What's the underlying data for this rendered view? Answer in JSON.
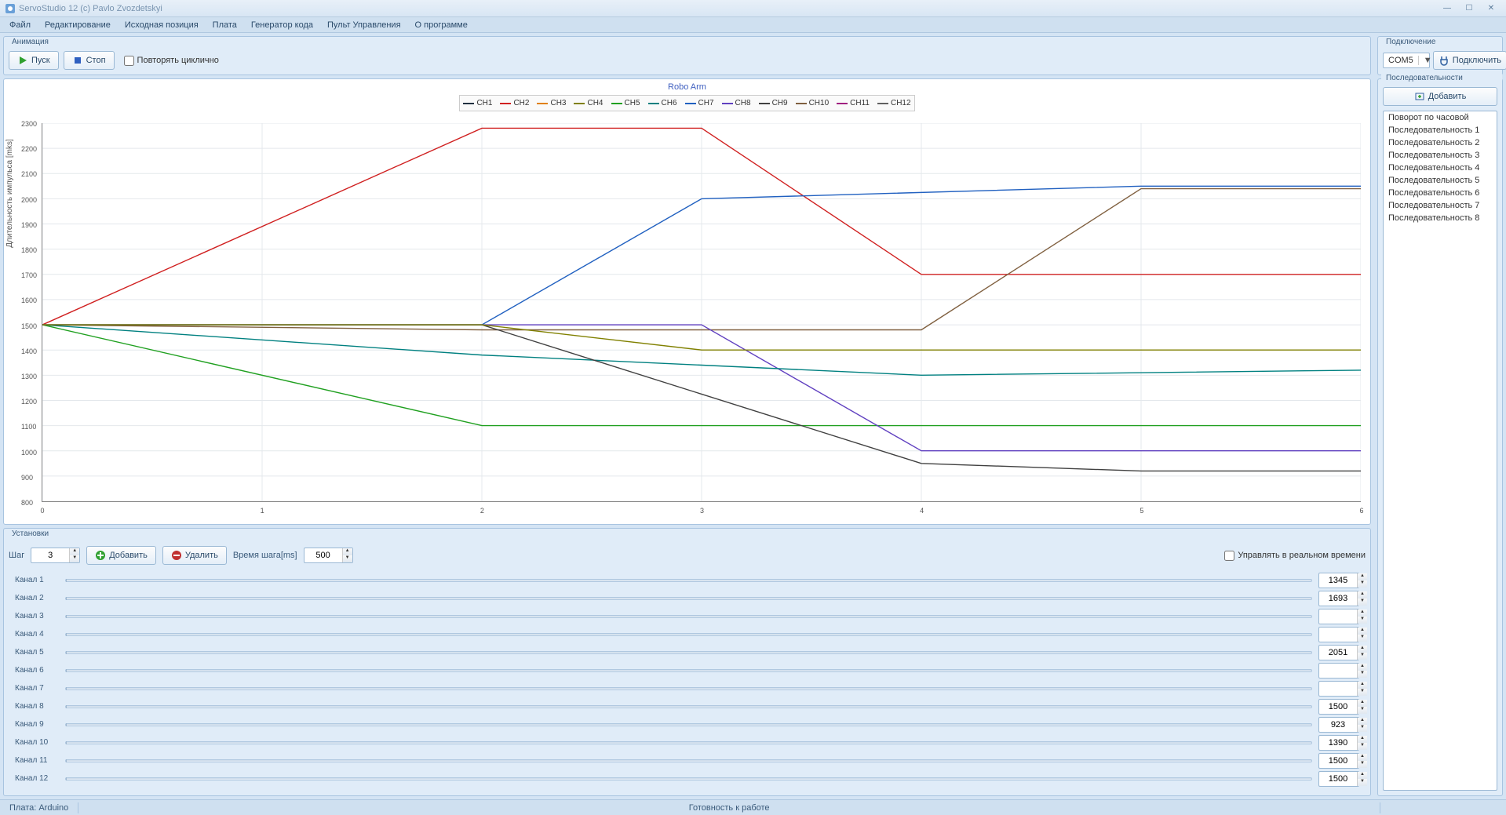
{
  "window": {
    "title": "ServoStudio 12  (c) Pavlo Zvozdetskyi",
    "min": "—",
    "max": "☐",
    "close": "✕"
  },
  "menu": [
    "Файл",
    "Редактирование",
    "Исходная позиция",
    "Плата",
    "Генератор кода",
    "Пульт Управления",
    "О программе"
  ],
  "animation": {
    "title": "Анимация",
    "play": "Пуск",
    "stop": "Стоп",
    "loop": "Повторять циклично"
  },
  "chart": {
    "title": "Robo Arm",
    "ylabel": "Длительность импульса [mks]",
    "ylim": [
      800,
      2300
    ],
    "ytick_step": 100,
    "xlim": [
      0,
      6
    ],
    "xticks": [
      0,
      1,
      2,
      3,
      4,
      5,
      6
    ],
    "channels": [
      {
        "name": "CH1",
        "color": "#203040"
      },
      {
        "name": "CH2",
        "color": "#d02020"
      },
      {
        "name": "CH3",
        "color": "#e08000"
      },
      {
        "name": "CH4",
        "color": "#808000"
      },
      {
        "name": "CH5",
        "color": "#20a020"
      },
      {
        "name": "CH6",
        "color": "#008080"
      },
      {
        "name": "CH7",
        "color": "#2060c0"
      },
      {
        "name": "CH8",
        "color": "#6040c0"
      },
      {
        "name": "CH9",
        "color": "#404040"
      },
      {
        "name": "CH10",
        "color": "#806040"
      },
      {
        "name": "CH11",
        "color": "#a02080"
      },
      {
        "name": "CH12",
        "color": "#606060"
      }
    ],
    "series": [
      {
        "color": "#d02020",
        "pts": [
          [
            0,
            1500
          ],
          [
            2,
            2280
          ],
          [
            3,
            2280
          ],
          [
            4,
            1700
          ],
          [
            6,
            1700
          ]
        ]
      },
      {
        "color": "#2060c0",
        "pts": [
          [
            0,
            1500
          ],
          [
            2,
            1500
          ],
          [
            3,
            2000
          ],
          [
            5,
            2050
          ],
          [
            6,
            2050
          ]
        ]
      },
      {
        "color": "#806040",
        "pts": [
          [
            0,
            1500
          ],
          [
            2,
            1480
          ],
          [
            4,
            1480
          ],
          [
            5,
            2040
          ],
          [
            6,
            2040
          ]
        ]
      },
      {
        "color": "#20a020",
        "pts": [
          [
            0,
            1500
          ],
          [
            2,
            1100
          ],
          [
            4,
            1100
          ],
          [
            6,
            1100
          ]
        ]
      },
      {
        "color": "#6040c0",
        "pts": [
          [
            0,
            1500
          ],
          [
            3,
            1500
          ],
          [
            4,
            1000
          ],
          [
            6,
            1000
          ]
        ]
      },
      {
        "color": "#008080",
        "pts": [
          [
            0,
            1500
          ],
          [
            2,
            1380
          ],
          [
            4,
            1300
          ],
          [
            6,
            1320
          ]
        ]
      },
      {
        "color": "#404040",
        "pts": [
          [
            0,
            1500
          ],
          [
            2,
            1500
          ],
          [
            4,
            950
          ],
          [
            5,
            920
          ],
          [
            6,
            920
          ]
        ]
      },
      {
        "color": "#808000",
        "pts": [
          [
            0,
            1500
          ],
          [
            2,
            1500
          ],
          [
            3,
            1400
          ],
          [
            6,
            1400
          ]
        ]
      }
    ]
  },
  "settings": {
    "title": "Установки",
    "step_label": "Шаг",
    "step_value": "3",
    "add_label": "Добавить",
    "delete_label": "Удалить",
    "steptime_label": "Время шага[ms]",
    "steptime_value": "500",
    "realtime_label": "Управлять в реальном времени",
    "channels": [
      {
        "label": "Канал 1",
        "value": "1345"
      },
      {
        "label": "Канал 2",
        "value": "1693"
      },
      {
        "label": "Канал 3",
        "value": ""
      },
      {
        "label": "Канал 4",
        "value": ""
      },
      {
        "label": "Канал 5",
        "value": "2051"
      },
      {
        "label": "Канал 6",
        "value": ""
      },
      {
        "label": "Канал 7",
        "value": ""
      },
      {
        "label": "Канал 8",
        "value": "1500"
      },
      {
        "label": "Канал 9",
        "value": "923"
      },
      {
        "label": "Канал 10",
        "value": "1390"
      },
      {
        "label": "Канал 11",
        "value": "1500"
      },
      {
        "label": "Канал 12",
        "value": "1500"
      }
    ]
  },
  "connection": {
    "title": "Подключение",
    "port": "COM5",
    "connect": "Подключить"
  },
  "sequences": {
    "title": "Последовательности",
    "add": "Добавить",
    "items": [
      "Поворот по часовой",
      "Последовательность 1",
      "Последовательность 2",
      "Последовательность 3",
      "Последовательность 4",
      "Последовательность 5",
      "Последовательность 6",
      "Последовательность 7",
      "Последовательность 8"
    ]
  },
  "status": {
    "board": "Плата: Arduino",
    "ready": "Готовность к работе"
  }
}
